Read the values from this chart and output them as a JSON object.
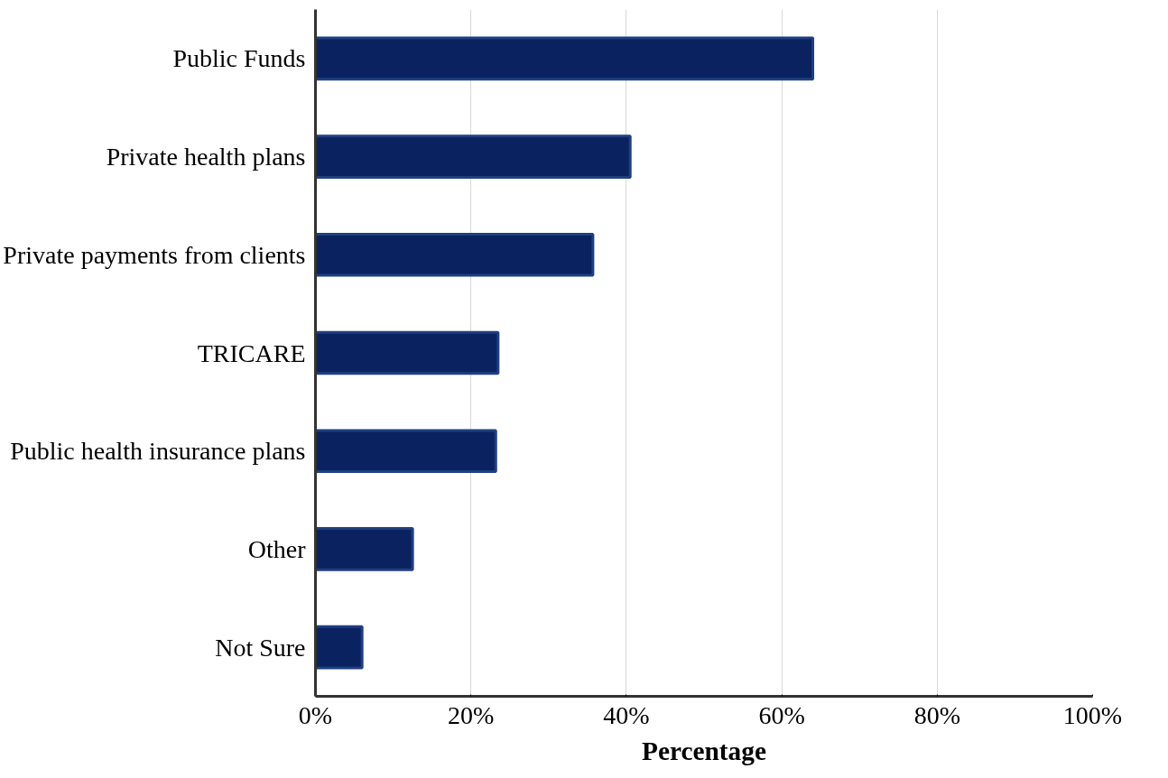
{
  "chart_data": {
    "type": "bar",
    "orientation": "horizontal",
    "xlabel": "Percentage",
    "categories": [
      "Public Funds",
      "Private health plans",
      "Private payments from clients",
      "TRICARE",
      "Public health insurance plans",
      "Other",
      "Not Sure"
    ],
    "values": [
      64,
      40.5,
      35.7,
      23.5,
      23.2,
      12.5,
      6
    ],
    "color": "#0b2260",
    "xlim": [
      0,
      100
    ],
    "xticks": [
      {
        "value": 0,
        "label": "0%"
      },
      {
        "value": 20,
        "label": "20%"
      },
      {
        "value": 40,
        "label": "40%"
      },
      {
        "value": 60,
        "label": "60%"
      },
      {
        "value": 80,
        "label": "80%"
      },
      {
        "value": 100,
        "label": "100%"
      }
    ],
    "grid": "x"
  }
}
